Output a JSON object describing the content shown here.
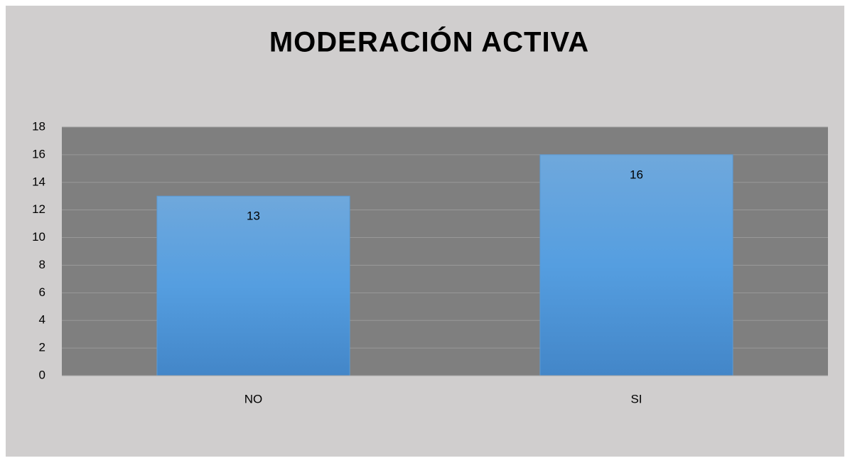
{
  "chart_data": {
    "type": "bar",
    "title": "MODERACIÓN ACTIVA",
    "categories": [
      "NO",
      "SI"
    ],
    "values": [
      13,
      16
    ],
    "color": "#5b9bd5",
    "ylim": [
      0,
      18
    ],
    "yticks": [
      0,
      2,
      4,
      6,
      8,
      10,
      12,
      14,
      16,
      18
    ],
    "grid": true
  }
}
